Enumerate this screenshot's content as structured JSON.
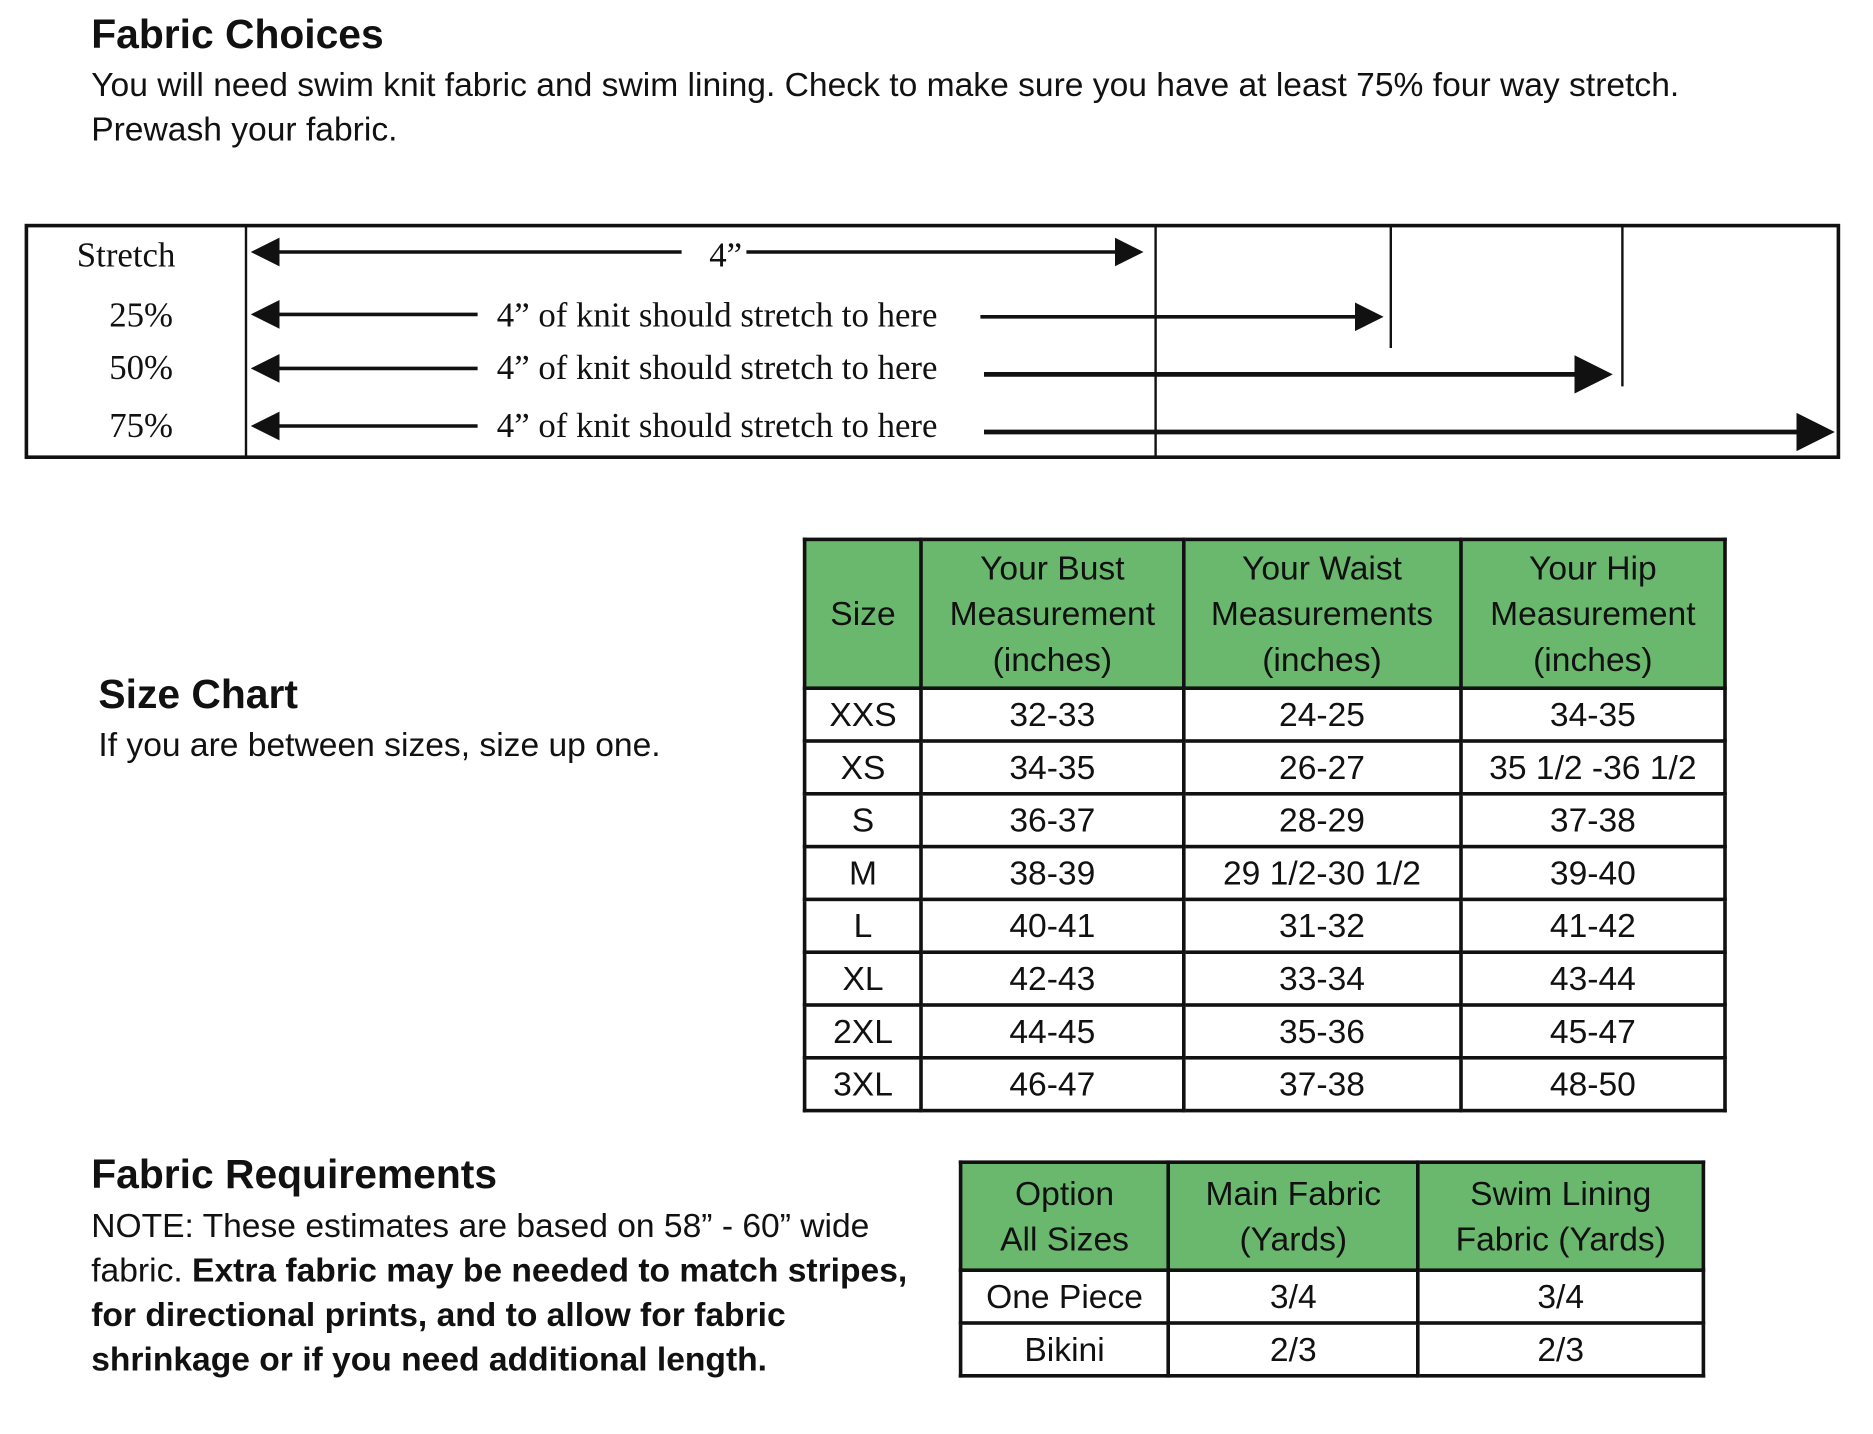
{
  "fabric_choices": {
    "title": "Fabric Choices",
    "text": "You will need swim knit fabric and swim lining. Check to make sure you have at least 75% four way stretch.  Prewash your fabric."
  },
  "stretch_guide": {
    "header": "Stretch",
    "base_label": "4”",
    "rows": [
      {
        "pct": "25%",
        "label": "4” of knit should stretch to here"
      },
      {
        "pct": "50%",
        "label": "4” of knit should stretch to here"
      },
      {
        "pct": "75%",
        "label": "4” of knit should stretch to here"
      }
    ]
  },
  "size_chart": {
    "title": "Size Chart",
    "note": "If you are between sizes, size up one.",
    "header_color": "#6ab86e",
    "columns": [
      [
        "Size"
      ],
      [
        "Your Bust",
        "Measurement",
        "(inches)"
      ],
      [
        "Your Waist",
        "Measurements",
        "(inches)"
      ],
      [
        "Your Hip",
        "Measurement",
        "(inches)"
      ]
    ],
    "rows": [
      [
        "XXS",
        "32-33",
        "24-25",
        "34-35"
      ],
      [
        "XS",
        "34-35",
        "26-27",
        "35 1/2 -36 1/2"
      ],
      [
        "S",
        "36-37",
        "28-29",
        "37-38"
      ],
      [
        "M",
        "38-39",
        "29 1/2-30 1/2",
        "39-40"
      ],
      [
        "L",
        "40-41",
        "31-32",
        "41-42"
      ],
      [
        "XL",
        "42-43",
        "33-34",
        "43-44"
      ],
      [
        "2XL",
        "44-45",
        "35-36",
        "45-47"
      ],
      [
        "3XL",
        "46-47",
        "37-38",
        "48-50"
      ]
    ]
  },
  "fabric_requirements": {
    "title": "Fabric Requirements",
    "note_plain": "NOTE: These estimates are based on 58” - 60” wide fabric. ",
    "note_bold": "Extra fabric may be needed to match stripes, for directional prints, and to allow for fabric shrinkage or if you need additional length.",
    "columns": [
      [
        "Option",
        "All Sizes"
      ],
      [
        "Main Fabric",
        "(Yards)"
      ],
      [
        "Swim Lining",
        "Fabric (Yards)"
      ]
    ],
    "rows": [
      [
        "One Piece",
        "3/4",
        "3/4"
      ],
      [
        "Bikini",
        "2/3",
        "2/3"
      ]
    ]
  }
}
